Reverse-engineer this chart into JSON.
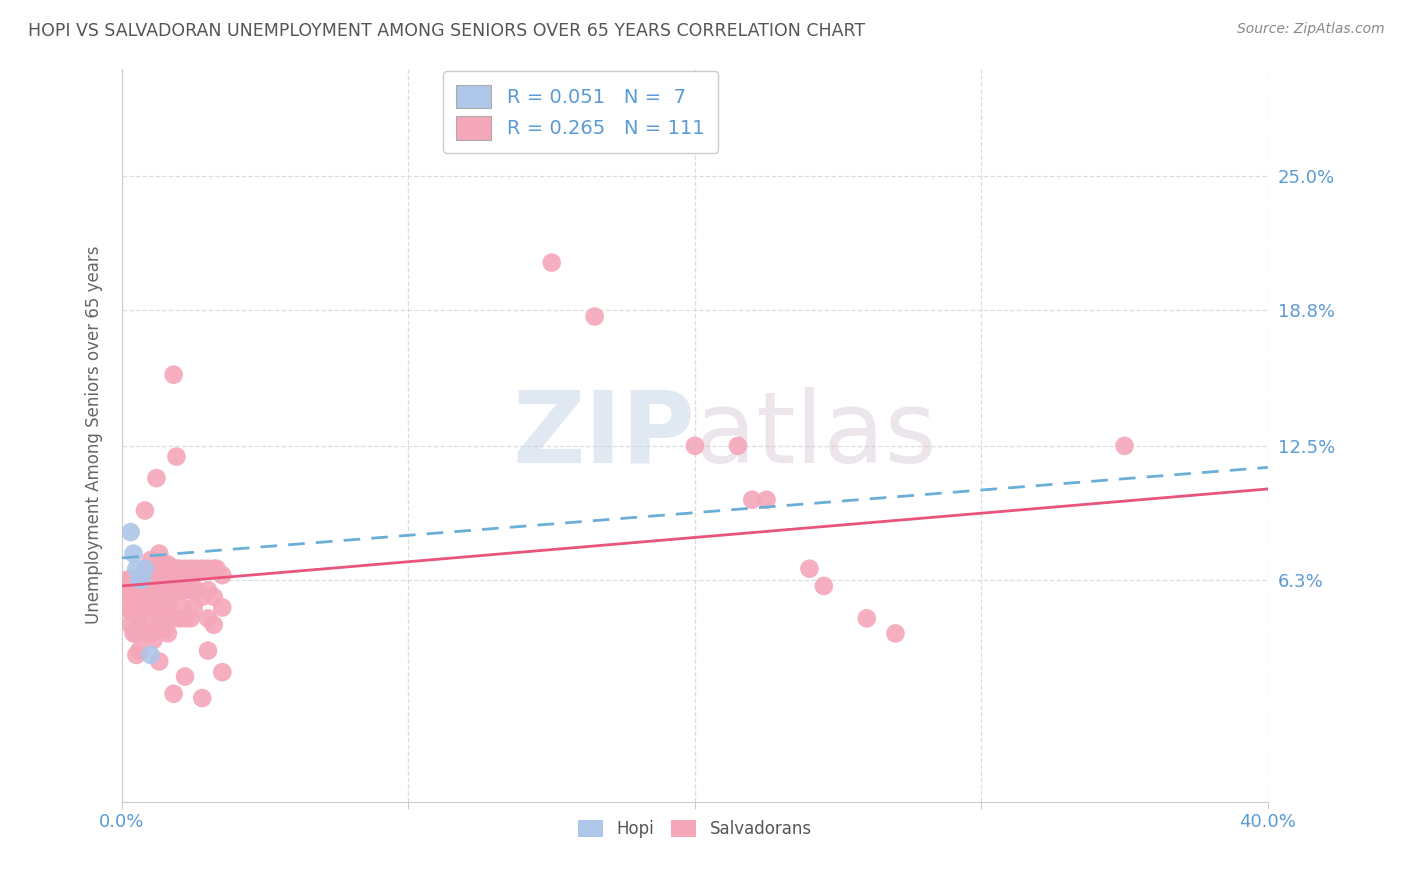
{
  "title": "HOPI VS SALVADORAN UNEMPLOYMENT AMONG SENIORS OVER 65 YEARS CORRELATION CHART",
  "source": "Source: ZipAtlas.com",
  "ylabel": "Unemployment Among Seniors over 65 years",
  "ytick_labels": [
    "25.0%",
    "18.8%",
    "12.5%",
    "6.3%"
  ],
  "ytick_values": [
    0.25,
    0.188,
    0.125,
    0.063
  ],
  "xlim": [
    0.0,
    0.4
  ],
  "ylim": [
    -0.04,
    0.3
  ],
  "hopi_color": "#aec6e8",
  "salvadoran_color": "#f4a7b9",
  "hopi_line_color": "#6baed6",
  "salvadoran_line_color": "#e8547a",
  "hopi_R": 0.051,
  "hopi_N": 7,
  "salvadoran_R": 0.265,
  "salvadoran_N": 111,
  "watermark_zip": "ZIP",
  "watermark_atlas": "atlas",
  "background_color": "#ffffff",
  "grid_color": "#dddddd",
  "axis_label_color": "#5b9bd5",
  "title_color": "#555555",
  "hopi_scatter": [
    [
      0.003,
      0.085
    ],
    [
      0.004,
      0.075
    ],
    [
      0.005,
      0.068
    ],
    [
      0.006,
      0.063
    ],
    [
      0.007,
      0.063
    ],
    [
      0.008,
      0.068
    ],
    [
      0.01,
      0.028
    ]
  ],
  "salvadoran_scatter": [
    [
      0.002,
      0.063
    ],
    [
      0.002,
      0.058
    ],
    [
      0.002,
      0.05
    ],
    [
      0.003,
      0.063
    ],
    [
      0.003,
      0.055
    ],
    [
      0.003,
      0.048
    ],
    [
      0.003,
      0.042
    ],
    [
      0.004,
      0.06
    ],
    [
      0.004,
      0.055
    ],
    [
      0.004,
      0.048
    ],
    [
      0.004,
      0.038
    ],
    [
      0.005,
      0.06
    ],
    [
      0.005,
      0.055
    ],
    [
      0.005,
      0.048
    ],
    [
      0.005,
      0.038
    ],
    [
      0.005,
      0.028
    ],
    [
      0.006,
      0.062
    ],
    [
      0.006,
      0.058
    ],
    [
      0.006,
      0.05
    ],
    [
      0.006,
      0.042
    ],
    [
      0.006,
      0.03
    ],
    [
      0.007,
      0.065
    ],
    [
      0.007,
      0.058
    ],
    [
      0.007,
      0.052
    ],
    [
      0.007,
      0.042
    ],
    [
      0.008,
      0.095
    ],
    [
      0.008,
      0.065
    ],
    [
      0.008,
      0.058
    ],
    [
      0.008,
      0.05
    ],
    [
      0.008,
      0.038
    ],
    [
      0.009,
      0.068
    ],
    [
      0.009,
      0.06
    ],
    [
      0.009,
      0.05
    ],
    [
      0.009,
      0.038
    ],
    [
      0.01,
      0.072
    ],
    [
      0.01,
      0.06
    ],
    [
      0.01,
      0.05
    ],
    [
      0.01,
      0.038
    ],
    [
      0.011,
      0.068
    ],
    [
      0.011,
      0.058
    ],
    [
      0.011,
      0.048
    ],
    [
      0.011,
      0.035
    ],
    [
      0.012,
      0.11
    ],
    [
      0.012,
      0.068
    ],
    [
      0.012,
      0.06
    ],
    [
      0.012,
      0.05
    ],
    [
      0.012,
      0.04
    ],
    [
      0.013,
      0.075
    ],
    [
      0.013,
      0.065
    ],
    [
      0.013,
      0.055
    ],
    [
      0.013,
      0.045
    ],
    [
      0.013,
      0.025
    ],
    [
      0.014,
      0.07
    ],
    [
      0.014,
      0.06
    ],
    [
      0.014,
      0.05
    ],
    [
      0.014,
      0.04
    ],
    [
      0.015,
      0.068
    ],
    [
      0.015,
      0.06
    ],
    [
      0.015,
      0.05
    ],
    [
      0.015,
      0.04
    ],
    [
      0.016,
      0.07
    ],
    [
      0.016,
      0.062
    ],
    [
      0.016,
      0.05
    ],
    [
      0.016,
      0.038
    ],
    [
      0.017,
      0.065
    ],
    [
      0.017,
      0.055
    ],
    [
      0.017,
      0.045
    ],
    [
      0.018,
      0.158
    ],
    [
      0.018,
      0.068
    ],
    [
      0.018,
      0.058
    ],
    [
      0.018,
      0.045
    ],
    [
      0.018,
      0.01
    ],
    [
      0.019,
      0.12
    ],
    [
      0.019,
      0.068
    ],
    [
      0.019,
      0.058
    ],
    [
      0.02,
      0.068
    ],
    [
      0.02,
      0.058
    ],
    [
      0.02,
      0.045
    ],
    [
      0.021,
      0.062
    ],
    [
      0.021,
      0.05
    ],
    [
      0.022,
      0.068
    ],
    [
      0.022,
      0.058
    ],
    [
      0.022,
      0.045
    ],
    [
      0.022,
      0.018
    ],
    [
      0.024,
      0.068
    ],
    [
      0.024,
      0.058
    ],
    [
      0.024,
      0.045
    ],
    [
      0.025,
      0.065
    ],
    [
      0.025,
      0.05
    ],
    [
      0.026,
      0.068
    ],
    [
      0.026,
      0.058
    ],
    [
      0.028,
      0.068
    ],
    [
      0.028,
      0.055
    ],
    [
      0.028,
      0.008
    ],
    [
      0.03,
      0.068
    ],
    [
      0.03,
      0.058
    ],
    [
      0.03,
      0.045
    ],
    [
      0.03,
      0.03
    ],
    [
      0.032,
      0.068
    ],
    [
      0.032,
      0.055
    ],
    [
      0.032,
      0.042
    ],
    [
      0.033,
      0.068
    ],
    [
      0.035,
      0.065
    ],
    [
      0.035,
      0.05
    ],
    [
      0.035,
      0.02
    ],
    [
      0.15,
      0.21
    ],
    [
      0.165,
      0.185
    ],
    [
      0.2,
      0.125
    ],
    [
      0.215,
      0.125
    ],
    [
      0.22,
      0.1
    ],
    [
      0.225,
      0.1
    ],
    [
      0.24,
      0.068
    ],
    [
      0.245,
      0.06
    ],
    [
      0.26,
      0.045
    ],
    [
      0.27,
      0.038
    ],
    [
      0.35,
      0.125
    ]
  ]
}
